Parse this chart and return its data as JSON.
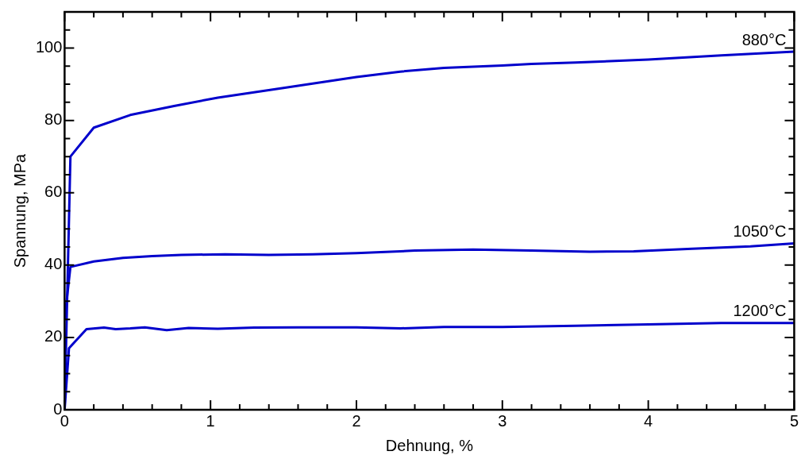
{
  "chart_data": {
    "type": "line",
    "xlabel": "Dehnung, %",
    "ylabel": "Spannung, MPa",
    "xlim": [
      0,
      5
    ],
    "ylim": [
      0,
      110
    ],
    "xticks": [
      0,
      1,
      2,
      3,
      4,
      5
    ],
    "yticks": [
      0,
      20,
      40,
      60,
      80,
      100
    ],
    "grid": false,
    "legend": false,
    "marker": "none",
    "line_style": "solid",
    "series": [
      {
        "name": "880°C",
        "color": "#0000cc",
        "x": [
          0,
          0.04,
          0.2,
          0.45,
          0.75,
          1.05,
          1.5,
          2,
          2.3,
          2.6,
          3,
          3.2,
          3.5,
          4,
          4.5,
          5
        ],
        "values": [
          0,
          70,
          78,
          81.5,
          84,
          86.3,
          89,
          92,
          93.5,
          94.5,
          95.2,
          95.6,
          96,
          96.8,
          98,
          99
        ]
      },
      {
        "name": "1050°C",
        "color": "#0000cc",
        "x": [
          0,
          0.04,
          0.2,
          0.4,
          0.6,
          0.8,
          1.1,
          1.4,
          1.7,
          2,
          2.4,
          2.8,
          3.2,
          3.6,
          3.9,
          4.3,
          4.7,
          5
        ],
        "values": [
          25,
          39.5,
          41,
          42,
          42.5,
          42.8,
          43,
          42.8,
          43,
          43.3,
          44,
          44.3,
          44,
          43.7,
          43.8,
          44.5,
          45.2,
          46
        ]
      },
      {
        "name": "1200°C",
        "color": "#0000cc",
        "x": [
          0,
          0.03,
          0.15,
          0.27,
          0.35,
          0.45,
          0.55,
          0.7,
          0.85,
          1.05,
          1.3,
          1.6,
          2,
          2.3,
          2.6,
          3,
          3.5,
          4,
          4.5,
          5
        ],
        "values": [
          0,
          17,
          22.3,
          22.7,
          22.3,
          22.5,
          22.8,
          22,
          22.6,
          22.4,
          22.7,
          22.8,
          22.8,
          22.5,
          22.9,
          22.9,
          23.2,
          23.6,
          24,
          24
        ]
      }
    ]
  }
}
